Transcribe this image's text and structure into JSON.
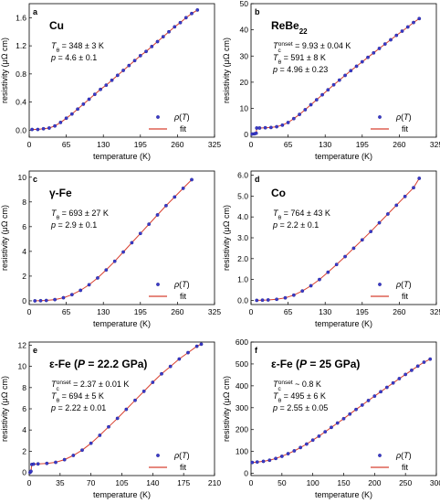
{
  "colors": {
    "data": "#3a3ac8",
    "fit": "#d84030"
  },
  "chart_data": [
    {
      "type": "scatter",
      "letter": "a",
      "title": "Cu",
      "title_sub": "",
      "annotations": [
        [
          "T",
          "θ",
          " = 348 ± 3 K"
        ],
        [
          "p",
          "",
          " = 4.6 ± 0.1"
        ]
      ],
      "xlabel": "temperature (K)",
      "ylabel": "resistivity (μΩ cm)",
      "xlim": [
        0,
        325
      ],
      "ylim": [
        -0.1,
        1.8
      ],
      "xticks": [
        0,
        65,
        130,
        195,
        260,
        325
      ],
      "yticks": [
        0.0,
        0.4,
        0.8,
        1.2,
        1.6
      ],
      "ytick_decimals": 1,
      "legend": [
        "ρ(T)",
        "fit"
      ],
      "points": [
        [
          5,
          0.01
        ],
        [
          15,
          0.01
        ],
        [
          25,
          0.02
        ],
        [
          35,
          0.03
        ],
        [
          45,
          0.06
        ],
        [
          55,
          0.11
        ],
        [
          65,
          0.17
        ],
        [
          75,
          0.23
        ],
        [
          85,
          0.3
        ],
        [
          95,
          0.37
        ],
        [
          105,
          0.44
        ],
        [
          115,
          0.51
        ],
        [
          125,
          0.58
        ],
        [
          135,
          0.64
        ],
        [
          145,
          0.71
        ],
        [
          155,
          0.78
        ],
        [
          165,
          0.85
        ],
        [
          175,
          0.92
        ],
        [
          185,
          0.99
        ],
        [
          195,
          1.06
        ],
        [
          205,
          1.12
        ],
        [
          215,
          1.19
        ],
        [
          225,
          1.26
        ],
        [
          235,
          1.33
        ],
        [
          245,
          1.4
        ],
        [
          255,
          1.47
        ],
        [
          265,
          1.53
        ],
        [
          275,
          1.6
        ],
        [
          285,
          1.66
        ],
        [
          295,
          1.71
        ]
      ]
    },
    {
      "type": "scatter",
      "letter": "b",
      "title": "ReBe",
      "title_sub": "22",
      "annotations": [
        [
          "T",
          "c",
          "onset",
          " = 9.93 ± 0.04 K"
        ],
        [
          "T",
          "θ",
          " = 591 ± 8 K"
        ],
        [
          "p",
          "",
          " = 4.96 ± 0.23"
        ]
      ],
      "xlabel": "temperature (K)",
      "ylabel": "resistivity (μΩ cm)",
      "xlim": [
        0,
        325
      ],
      "ylim": [
        -1,
        50
      ],
      "xticks": [
        0,
        65,
        130,
        195,
        260,
        325
      ],
      "yticks": [
        0,
        10,
        20,
        30,
        40,
        50
      ],
      "ytick_decimals": 0,
      "legend": [
        "ρ(T)",
        "fit"
      ],
      "points": [
        [
          2,
          0.2
        ],
        [
          6,
          0.3
        ],
        [
          9,
          0.5
        ],
        [
          10,
          2.5
        ],
        [
          15,
          2.5
        ],
        [
          25,
          2.6
        ],
        [
          35,
          2.7
        ],
        [
          45,
          3.0
        ],
        [
          55,
          3.6
        ],
        [
          65,
          4.6
        ],
        [
          75,
          6.1
        ],
        [
          85,
          7.7
        ],
        [
          95,
          9.5
        ],
        [
          105,
          11.4
        ],
        [
          115,
          13.3
        ],
        [
          125,
          15.2
        ],
        [
          135,
          17.1
        ],
        [
          145,
          19.0
        ],
        [
          155,
          20.8
        ],
        [
          165,
          22.6
        ],
        [
          175,
          24.4
        ],
        [
          185,
          26.1
        ],
        [
          195,
          27.8
        ],
        [
          205,
          29.5
        ],
        [
          215,
          31.2
        ],
        [
          225,
          32.9
        ],
        [
          235,
          34.6
        ],
        [
          245,
          36.2
        ],
        [
          255,
          37.9
        ],
        [
          265,
          39.5
        ],
        [
          275,
          41.1
        ],
        [
          285,
          42.8
        ],
        [
          295,
          44.3
        ]
      ]
    },
    {
      "type": "scatter",
      "letter": "c",
      "title": "γ-Fe",
      "title_sub": "",
      "annotations": [
        [
          "T",
          "θ",
          " = 693 ± 27 K"
        ],
        [
          "p",
          "",
          " = 2.9 ± 0.1"
        ]
      ],
      "xlabel": "temperature (K)",
      "ylabel": "resistivity (μΩ cm)",
      "xlim": [
        0,
        325
      ],
      "ylim": [
        -0.3,
        10.5
      ],
      "xticks": [
        0,
        65,
        130,
        195,
        260,
        325
      ],
      "yticks": [
        0,
        2,
        4,
        6,
        8,
        10
      ],
      "ytick_decimals": 0,
      "legend": [
        "ρ(T)",
        "fit"
      ],
      "points": [
        [
          10,
          0.0
        ],
        [
          20,
          0.01
        ],
        [
          30,
          0.03
        ],
        [
          45,
          0.1
        ],
        [
          60,
          0.25
        ],
        [
          75,
          0.5
        ],
        [
          90,
          0.85
        ],
        [
          105,
          1.3
        ],
        [
          120,
          1.85
        ],
        [
          135,
          2.5
        ],
        [
          150,
          3.2
        ],
        [
          165,
          3.95
        ],
        [
          180,
          4.7
        ],
        [
          195,
          5.45
        ],
        [
          210,
          6.2
        ],
        [
          225,
          6.95
        ],
        [
          240,
          7.7
        ],
        [
          255,
          8.4
        ],
        [
          270,
          9.1
        ],
        [
          285,
          9.8
        ]
      ]
    },
    {
      "type": "scatter",
      "letter": "d",
      "title": "Co",
      "title_sub": "",
      "annotations": [
        [
          "T",
          "θ",
          " = 764 ± 43 K"
        ],
        [
          "p",
          "",
          " = 2.2 ± 0.1"
        ]
      ],
      "xlabel": "temperature (K)",
      "ylabel": "resistivity (μΩ cm)",
      "xlim": [
        0,
        325
      ],
      "ylim": [
        -0.2,
        6.2
      ],
      "xticks": [
        0,
        65,
        130,
        195,
        260,
        325
      ],
      "yticks": [
        0.0,
        1.0,
        2.0,
        3.0,
        4.0,
        5.0,
        6.0
      ],
      "ytick_decimals": 1,
      "legend": [
        "ρ(T)",
        "fit"
      ],
      "points": [
        [
          10,
          0.0
        ],
        [
          20,
          0.01
        ],
        [
          30,
          0.02
        ],
        [
          45,
          0.05
        ],
        [
          60,
          0.12
        ],
        [
          75,
          0.25
        ],
        [
          90,
          0.45
        ],
        [
          105,
          0.7
        ],
        [
          120,
          1.0
        ],
        [
          135,
          1.35
        ],
        [
          150,
          1.72
        ],
        [
          165,
          2.1
        ],
        [
          180,
          2.5
        ],
        [
          195,
          2.9
        ],
        [
          210,
          3.3
        ],
        [
          225,
          3.72
        ],
        [
          240,
          4.14
        ],
        [
          255,
          4.56
        ],
        [
          270,
          4.98
        ],
        [
          285,
          5.4
        ],
        [
          295,
          5.85
        ]
      ]
    },
    {
      "type": "scatter",
      "letter": "e",
      "title": "ε-Fe (",
      "title_var": "P",
      "title_end": " = 22.2 GPa)",
      "annotations": [
        [
          "T",
          "c",
          "onset",
          " = 2.37 ± 0.01 K"
        ],
        [
          "T",
          "θ",
          " = 694 ± 5 K"
        ],
        [
          "p",
          "",
          " = 2.22 ± 0.01"
        ]
      ],
      "xlabel": "temperature (K)",
      "ylabel": "resistivity (μΩ cm)",
      "xlim": [
        0,
        210
      ],
      "ylim": [
        -0.3,
        12.3
      ],
      "xticks": [
        0,
        35,
        70,
        105,
        140,
        175,
        210
      ],
      "yticks": [
        0,
        2,
        4,
        6,
        8,
        10,
        12
      ],
      "ytick_decimals": 0,
      "legend": [
        "ρ(T)",
        "fit"
      ],
      "points": [
        [
          1,
          0.0
        ],
        [
          2,
          0.1
        ],
        [
          3,
          0.75
        ],
        [
          5,
          0.78
        ],
        [
          10,
          0.8
        ],
        [
          20,
          0.85
        ],
        [
          30,
          0.95
        ],
        [
          40,
          1.2
        ],
        [
          50,
          1.6
        ],
        [
          60,
          2.1
        ],
        [
          70,
          2.75
        ],
        [
          80,
          3.5
        ],
        [
          90,
          4.3
        ],
        [
          100,
          5.1
        ],
        [
          110,
          5.95
        ],
        [
          120,
          6.8
        ],
        [
          130,
          7.65
        ],
        [
          140,
          8.5
        ],
        [
          150,
          9.3
        ],
        [
          160,
          10.0
        ],
        [
          170,
          10.7
        ],
        [
          180,
          11.3
        ],
        [
          190,
          11.9
        ],
        [
          195,
          12.1
        ]
      ]
    },
    {
      "type": "scatter",
      "letter": "f",
      "title": "ε-Fe (",
      "title_var": "P",
      "title_end": " = 25 GPa)",
      "annotations": [
        [
          "T",
          "c",
          "onset",
          " ~ 0.8 K"
        ],
        [
          "T",
          "θ",
          " = 495 ± 6 K"
        ],
        [
          "p",
          "",
          " = 2.55 ± 0.05"
        ]
      ],
      "xlabel": "temperature (K)",
      "ylabel": "resistivity (μΩ cm)",
      "xlim": [
        0,
        300
      ],
      "ylim": [
        -10,
        600
      ],
      "xticks": [
        0,
        50,
        100,
        150,
        200,
        250,
        300
      ],
      "yticks": [
        0,
        100,
        200,
        300,
        400,
        500,
        600
      ],
      "ytick_decimals": 0,
      "legend": [
        "ρ(T)",
        "fit"
      ],
      "points": [
        [
          2,
          50
        ],
        [
          10,
          52
        ],
        [
          20,
          55
        ],
        [
          30,
          60
        ],
        [
          40,
          68
        ],
        [
          50,
          78
        ],
        [
          60,
          90
        ],
        [
          70,
          103
        ],
        [
          80,
          118
        ],
        [
          90,
          134
        ],
        [
          100,
          152
        ],
        [
          110,
          170
        ],
        [
          120,
          190
        ],
        [
          130,
          210
        ],
        [
          140,
          230
        ],
        [
          150,
          250
        ],
        [
          160,
          271
        ],
        [
          170,
          292
        ],
        [
          180,
          312
        ],
        [
          190,
          333
        ],
        [
          200,
          353
        ],
        [
          210,
          373
        ],
        [
          220,
          393
        ],
        [
          230,
          413
        ],
        [
          240,
          433
        ],
        [
          250,
          452
        ],
        [
          260,
          471
        ],
        [
          270,
          490
        ],
        [
          280,
          508
        ],
        [
          290,
          522
        ]
      ]
    }
  ]
}
